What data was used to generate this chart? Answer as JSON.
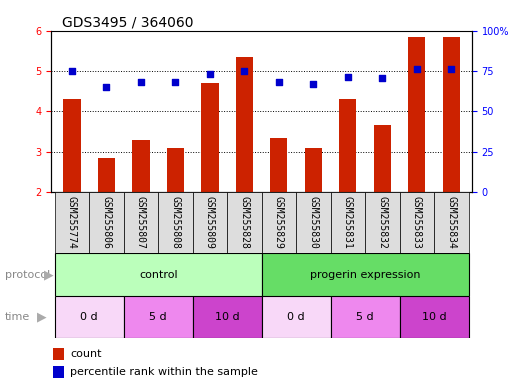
{
  "title": "GDS3495 / 364060",
  "samples": [
    "GSM255774",
    "GSM255806",
    "GSM255807",
    "GSM255808",
    "GSM255809",
    "GSM255828",
    "GSM255829",
    "GSM255830",
    "GSM255831",
    "GSM255832",
    "GSM255833",
    "GSM255834"
  ],
  "bar_values": [
    4.3,
    2.85,
    3.3,
    3.1,
    4.7,
    5.35,
    3.35,
    3.1,
    4.3,
    3.65,
    5.85,
    5.85
  ],
  "dot_values": [
    5.0,
    4.6,
    4.72,
    4.72,
    4.93,
    5.0,
    4.72,
    4.68,
    4.85,
    4.82,
    5.05,
    5.05
  ],
  "bar_color": "#cc2200",
  "dot_color": "#0000cc",
  "ylim_left": [
    2,
    6
  ],
  "ylim_right": [
    0,
    100
  ],
  "yticks_left": [
    2,
    3,
    4,
    5,
    6
  ],
  "yticks_right": [
    0,
    25,
    50,
    75,
    100
  ],
  "protocol_control_label": "control",
  "protocol_progerin_label": "progerin expression",
  "protocol_control_color": "#bbffbb",
  "protocol_progerin_color": "#66dd66",
  "time_spans": [
    [
      0,
      2,
      "0 d",
      "#f8d8f8"
    ],
    [
      2,
      4,
      "5 d",
      "#ee88ee"
    ],
    [
      4,
      6,
      "10 d",
      "#cc44cc"
    ],
    [
      6,
      8,
      "0 d",
      "#f8d8f8"
    ],
    [
      8,
      10,
      "5 d",
      "#ee88ee"
    ],
    [
      10,
      12,
      "10 d",
      "#cc44cc"
    ]
  ],
  "legend_count_label": "count",
  "legend_pct_label": "percentile rank within the sample",
  "title_fontsize": 10,
  "sample_label_fontsize": 7,
  "axis_tick_fontsize": 7,
  "row_label_fontsize": 8,
  "time_fontsize": 8,
  "bar_width": 0.5,
  "sample_box_color": "#dddddd",
  "background_color": "#ffffff",
  "plot_bg_color": "#ffffff"
}
